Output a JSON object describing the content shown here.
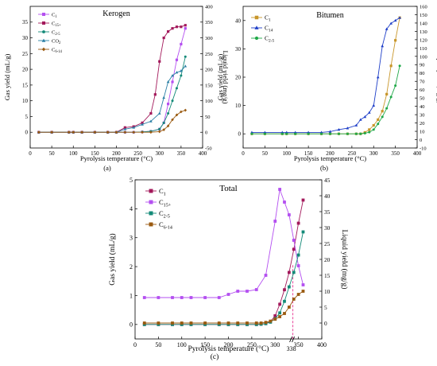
{
  "chart_data": [
    {
      "id": "kerogen",
      "panel_label": "(a)",
      "type": "line",
      "title": "Kerogen",
      "xlabel": "Pyrolysis temperature (°C)",
      "ylabel": "Gas yield (mL/g)",
      "y2label": "Liquid yield (mg/g)",
      "xlim": [
        0,
        400
      ],
      "ylim": [
        -5,
        40
      ],
      "y2lim": [
        -50,
        400
      ],
      "xticks": [
        0,
        50,
        100,
        150,
        200,
        250,
        300,
        350,
        400
      ],
      "yticks": [
        0,
        5,
        10,
        15,
        20,
        25,
        30,
        35
      ],
      "y2ticks": [
        -50,
        0,
        50,
        100,
        150,
        200,
        250,
        300,
        350,
        400
      ],
      "legend": {
        "position": "top-left"
      },
      "series": [
        {
          "name": "C1",
          "label_main": "C",
          "label_sub": "1",
          "color": "#b44ff0",
          "marker": "square",
          "axis": "left",
          "x": [
            20,
            50,
            90,
            100,
            120,
            150,
            180,
            200,
            220,
            240,
            260,
            280,
            300,
            310,
            320,
            330,
            340,
            350,
            360
          ],
          "y": [
            0,
            0,
            0,
            0,
            0,
            0,
            0,
            0,
            0,
            0,
            0.1,
            0.3,
            1,
            3,
            9,
            16,
            23,
            28,
            33
          ]
        },
        {
          "name": "C15+",
          "label_main": "C",
          "label_sub": "15+",
          "color": "#a3195b",
          "marker": "square",
          "axis": "right",
          "x": [
            20,
            50,
            90,
            100,
            120,
            150,
            180,
            200,
            220,
            240,
            260,
            280,
            290,
            300,
            310,
            320,
            330,
            340,
            350,
            360
          ],
          "y": [
            0,
            0,
            0,
            0,
            0,
            0,
            0,
            0,
            15,
            18,
            30,
            60,
            120,
            225,
            300,
            320,
            330,
            335,
            335,
            340
          ]
        },
        {
          "name": "C2-5",
          "label_main": "C",
          "label_sub": "2-5",
          "color": "#138a78",
          "marker": "circle",
          "axis": "left",
          "x": [
            20,
            50,
            90,
            100,
            120,
            150,
            180,
            200,
            220,
            240,
            260,
            280,
            300,
            310,
            320,
            330,
            340,
            350,
            360
          ],
          "y": [
            0,
            0,
            0,
            0,
            0,
            0,
            0,
            0,
            0,
            0,
            0.1,
            0.3,
            1,
            3,
            6,
            10,
            14,
            18,
            24
          ]
        },
        {
          "name": "CO2",
          "label_main": "CO",
          "label_sub": "2",
          "color": "#2a7fa5",
          "marker": "triangle",
          "axis": "left",
          "x": [
            20,
            50,
            90,
            100,
            120,
            150,
            180,
            200,
            220,
            240,
            260,
            280,
            300,
            310,
            320,
            330,
            340,
            350,
            360
          ],
          "y": [
            0,
            0,
            0,
            0,
            0,
            0,
            0,
            0,
            1,
            1.5,
            2.5,
            3.5,
            6,
            11,
            16,
            18,
            19,
            19.5,
            21
          ]
        },
        {
          "name": "C6-14",
          "label_main": "C",
          "label_sub": "6-14",
          "color": "#9a5a10",
          "marker": "diamond",
          "axis": "left",
          "x": [
            20,
            50,
            90,
            100,
            120,
            150,
            180,
            200,
            220,
            240,
            260,
            280,
            300,
            310,
            320,
            330,
            340,
            350,
            360
          ],
          "y": [
            0,
            0,
            0,
            0,
            0,
            0,
            0,
            0,
            0,
            0,
            0,
            0,
            0.2,
            0.8,
            2,
            4,
            5.5,
            6.5,
            7
          ]
        }
      ]
    },
    {
      "id": "bitumen",
      "panel_label": "(b)",
      "type": "line",
      "title": "Bitumen",
      "xlabel": "Pyrolysis temperature (°C)",
      "ylabel": "Gas yield (mL/g)",
      "y2label": "Liquid yield (mg/g)",
      "xlim": [
        0,
        400
      ],
      "ylim": [
        -5,
        45
      ],
      "y2lim": [
        -10,
        160
      ],
      "xticks": [
        0,
        50,
        100,
        150,
        200,
        250,
        300,
        350,
        400
      ],
      "yticks": [
        0,
        10,
        20,
        30,
        40
      ],
      "y2ticks": [
        -10,
        0,
        10,
        20,
        30,
        40,
        50,
        60,
        70,
        80,
        90,
        100,
        110,
        120,
        130,
        140,
        150,
        160
      ],
      "legend": {
        "position": "top-left"
      },
      "series": [
        {
          "name": "C1",
          "label_main": "C",
          "label_sub": "1",
          "color": "#c8962a",
          "marker": "square",
          "axis": "left",
          "x": [
            20,
            50,
            90,
            100,
            120,
            150,
            180,
            200,
            220,
            240,
            260,
            270,
            280,
            290,
            300,
            310,
            320,
            330,
            340,
            350,
            360
          ],
          "y": [
            0,
            0,
            0,
            0,
            0,
            0,
            0,
            0,
            0,
            0,
            0,
            0,
            0.5,
            1.5,
            3,
            5,
            8,
            14,
            24,
            33,
            41
          ]
        },
        {
          "name": "C14",
          "label_main": "C",
          "label_sub": "14",
          "color": "#1f3fc8",
          "marker": "triangle",
          "axis": "left",
          "x": [
            20,
            50,
            90,
            100,
            120,
            150,
            180,
            200,
            220,
            240,
            260,
            270,
            280,
            290,
            300,
            310,
            320,
            330,
            340,
            350,
            360
          ],
          "y": [
            0.5,
            0.5,
            0.5,
            0.5,
            0.5,
            0.5,
            0.5,
            0.8,
            1.5,
            2,
            3,
            5,
            6,
            7.5,
            10,
            20,
            31,
            37,
            39,
            40,
            41
          ]
        },
        {
          "name": "C2-5",
          "label_main": "C",
          "label_sub": "2-5",
          "color": "#1fa848",
          "marker": "circle",
          "axis": "left",
          "x": [
            20,
            50,
            90,
            100,
            120,
            150,
            180,
            200,
            220,
            240,
            260,
            270,
            280,
            290,
            300,
            310,
            320,
            330,
            340,
            350,
            360
          ],
          "y": [
            0,
            0,
            0,
            0,
            0,
            0,
            0,
            0,
            0,
            0,
            0,
            0,
            0.2,
            0.6,
            1.5,
            3.5,
            6,
            9,
            13,
            17,
            24
          ]
        }
      ]
    },
    {
      "id": "total",
      "panel_label": "(c)",
      "type": "line",
      "title": "Total",
      "xlabel": "Pyrolysis temperature (°C)",
      "ylabel": "Gas yield (mL/g)",
      "y2label": "Liquid yield (mg/g)",
      "xlim": [
        0,
        400
      ],
      "ylim": [
        -0.5,
        5
      ],
      "y2lim": [
        -5,
        45
      ],
      "xticks": [
        0,
        50,
        100,
        150,
        200,
        250,
        300,
        350,
        400
      ],
      "yticks": [
        0,
        1,
        2,
        3,
        4,
        5
      ],
      "y2ticks": [
        0,
        5,
        10,
        15,
        20,
        25,
        30,
        35,
        40,
        45
      ],
      "legend": {
        "position": "top-left"
      },
      "annotation": {
        "x": 338,
        "label": "338"
      },
      "series": [
        {
          "name": "C1",
          "label_main": "C",
          "label_sub": "1",
          "color": "#a3195b",
          "marker": "square",
          "axis": "left",
          "x": [
            20,
            50,
            80,
            100,
            120,
            150,
            180,
            200,
            220,
            240,
            260,
            270,
            280,
            290,
            300,
            310,
            320,
            330,
            340,
            350,
            360
          ],
          "y": [
            0,
            0,
            0,
            0,
            0,
            0,
            0,
            0,
            0,
            0,
            0,
            0.01,
            0.03,
            0.1,
            0.3,
            0.7,
            1.2,
            1.8,
            2.6,
            3.5,
            4.3
          ]
        },
        {
          "name": "C15+",
          "label_main": "C",
          "label_sub": "15+",
          "color": "#b44ff0",
          "marker": "square",
          "axis": "right",
          "x": [
            20,
            50,
            80,
            100,
            120,
            150,
            180,
            200,
            220,
            240,
            260,
            280,
            300,
            310,
            320,
            330,
            340,
            350,
            360
          ],
          "y": [
            8,
            8,
            8,
            8,
            8,
            8,
            8,
            9,
            10,
            10,
            10.5,
            15,
            32,
            42,
            38,
            34,
            26,
            18,
            12
          ]
        },
        {
          "name": "C2-5",
          "label_main": "C",
          "label_sub": "2-5",
          "color": "#138a78",
          "marker": "square",
          "axis": "left",
          "x": [
            20,
            50,
            80,
            100,
            120,
            150,
            180,
            200,
            220,
            240,
            260,
            270,
            280,
            290,
            300,
            310,
            320,
            330,
            340,
            350,
            360
          ],
          "y": [
            0,
            0,
            0,
            0,
            0,
            0,
            0,
            0,
            0,
            0,
            0,
            0.01,
            0.03,
            0.08,
            0.2,
            0.4,
            0.8,
            1.3,
            1.8,
            2.4,
            3.2
          ]
        },
        {
          "name": "C6-14",
          "label_main": "C",
          "label_sub": "6-14",
          "color": "#9a5a10",
          "marker": "square",
          "axis": "right",
          "x": [
            20,
            50,
            80,
            100,
            120,
            150,
            180,
            200,
            220,
            240,
            260,
            270,
            280,
            290,
            300,
            310,
            320,
            330,
            340,
            350,
            360
          ],
          "y": [
            0,
            0,
            0,
            0,
            0,
            0,
            0,
            0,
            0,
            0,
            0,
            0,
            0.2,
            0.6,
            1.2,
            2,
            3,
            5,
            7.5,
            9,
            10
          ]
        }
      ]
    }
  ]
}
